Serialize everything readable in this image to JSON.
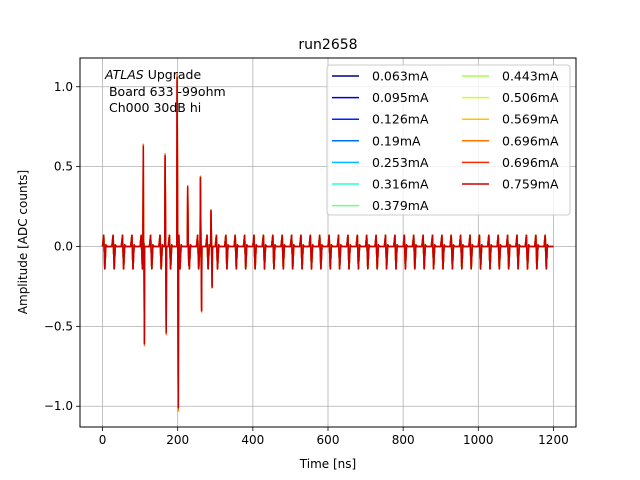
{
  "chart_data": {
    "type": "line",
    "title": "run2658",
    "xlabel": "Time [ns]",
    "ylabel": "Amplitude [ADC counts]",
    "xlim": [
      -60,
      1260
    ],
    "ylim": [
      -1.13,
      1.18
    ],
    "xticks": [
      0,
      200,
      400,
      600,
      800,
      1000,
      1200
    ],
    "xtick_labels": [
      "0",
      "200",
      "400",
      "600",
      "800",
      "1000",
      "1200"
    ],
    "yticks": [
      -1.0,
      -0.5,
      0.0,
      0.5,
      1.0
    ],
    "ytick_labels": [
      "−1.0",
      "−0.5",
      "0.0",
      "0.5",
      "1.0"
    ],
    "grid": true,
    "legend_position": "top-right",
    "annotation": {
      "italic_part": "ATLAS",
      "line1_rest": " Upgrade",
      "line2": " Board 633 -99ohm",
      "line3": " Ch000 30dB hi"
    },
    "time_range": [
      0,
      1200
    ],
    "baseline_spike_period_ns": 25,
    "baseline_spike_pattern": {
      "pos": 0.07,
      "neg": -0.14
    },
    "pulse_events": [
      {
        "t": 110,
        "peak": 0.64,
        "trough": -0.62
      },
      {
        "t": 168,
        "peak": 0.58,
        "trough": -0.55
      },
      {
        "t": 200,
        "peak": 1.08,
        "trough": -1.03
      },
      {
        "t": 228,
        "peak": 0.38,
        "trough": -0.12
      },
      {
        "t": 262,
        "peak": 0.44,
        "trough": -0.41
      },
      {
        "t": 290,
        "peak": 0.23,
        "trough": -0.26
      }
    ],
    "series": [
      {
        "name": "0.063mA",
        "color": "#00007f",
        "scale": 0.1
      },
      {
        "name": "0.095mA",
        "color": "#0000d6",
        "scale": 0.12
      },
      {
        "name": "0.126mA",
        "color": "#0020ff",
        "scale": 0.14
      },
      {
        "name": "0.19mA",
        "color": "#0070ff",
        "scale": 0.18
      },
      {
        "name": "0.253mA",
        "color": "#00c0ff",
        "scale": 0.22
      },
      {
        "name": "0.316mA",
        "color": "#29ffce",
        "scale": 0.26
      },
      {
        "name": "0.379mA",
        "color": "#6cff8a",
        "scale": 0.3
      },
      {
        "name": "0.443mA",
        "color": "#a7ff4f",
        "scale": 0.36
      },
      {
        "name": "0.506mA",
        "color": "#ceff29",
        "scale": 0.42
      },
      {
        "name": "0.569mA",
        "color": "#ffc400",
        "scale": 0.55
      },
      {
        "name": "0.696mA",
        "color": "#ff7400",
        "scale": 1.0
      },
      {
        "name": "0.696mA",
        "color": "#ff2a00",
        "scale": 0.96
      },
      {
        "name": "0.759mA",
        "color": "#c80000",
        "scale": 0.98
      }
    ]
  }
}
